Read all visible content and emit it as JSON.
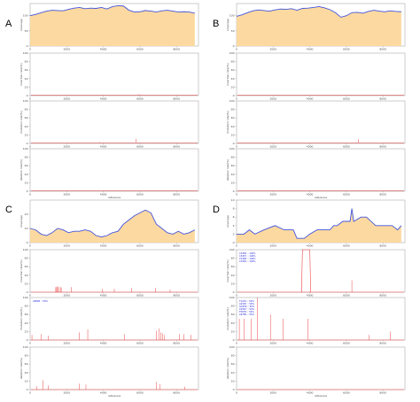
{
  "colors": {
    "coverage_fill": "#fcd9a0",
    "coverage_line": "#4455dd",
    "signal_line": "#ee4444",
    "axis": "#999999",
    "annotation_text": "#2222dd"
  },
  "chart_data": [
    {
      "id": "A",
      "panel_label": "A",
      "type": "area",
      "xlabel": "reference",
      "xlim": [
        0,
        9200
      ],
      "xticks": [
        "0",
        "2000",
        "4000",
        "6000",
        "8000"
      ],
      "rows": [
        {
          "kind": "coverage",
          "ylabel": "coverage",
          "ylim": [
            0,
            140
          ],
          "yticks": [
            "0",
            "50",
            "100"
          ],
          "points": [
            [
              0,
              100
            ],
            [
              300,
              104
            ],
            [
              600,
              110
            ],
            [
              900,
              115
            ],
            [
              1200,
              118
            ],
            [
              1500,
              117
            ],
            [
              1800,
              116
            ],
            [
              2100,
              121
            ],
            [
              2400,
              125
            ],
            [
              2700,
              127
            ],
            [
              3000,
              123
            ],
            [
              3300,
              125
            ],
            [
              3600,
              124
            ],
            [
              3900,
              127
            ],
            [
              4200,
              122
            ],
            [
              4500,
              130
            ],
            [
              4800,
              133
            ],
            [
              5100,
              132
            ],
            [
              5400,
              118
            ],
            [
              5700,
              112
            ],
            [
              6000,
              113
            ],
            [
              6300,
              117
            ],
            [
              6600,
              115
            ],
            [
              6900,
              112
            ],
            [
              7200,
              116
            ],
            [
              7500,
              118
            ],
            [
              7800,
              115
            ],
            [
              8100,
              112
            ],
            [
              8400,
              113
            ],
            [
              8700,
              112
            ],
            [
              9000,
              108
            ]
          ]
        },
        {
          "kind": "spikes",
          "ylabel": "insertion rate(%)",
          "ylim": [
            0,
            100
          ],
          "yticks": [
            "0",
            "20",
            "40",
            "60",
            "80",
            "100"
          ],
          "baseline": 1.5,
          "spikes": [
            [
              5950,
              4
            ],
            [
              7400,
              2
            ]
          ]
        },
        {
          "kind": "spikes",
          "ylabel": "mutation rate(%)",
          "ylim": [
            0,
            100
          ],
          "yticks": [
            "0",
            "20",
            "40",
            "60",
            "80",
            "100"
          ],
          "baseline": 1.5,
          "spikes": [
            [
              3800,
              3
            ],
            [
              5500,
              2
            ],
            [
              5800,
              11
            ],
            [
              6900,
              2
            ]
          ]
        },
        {
          "kind": "spikes",
          "ylabel": "deletion rate(%)",
          "ylim": [
            0,
            100
          ],
          "yticks": [
            "0",
            "20",
            "40",
            "60",
            "80",
            "100"
          ],
          "baseline": 1.5,
          "spikes": []
        }
      ]
    },
    {
      "id": "B",
      "panel_label": "B",
      "type": "area",
      "xlabel": "reference",
      "xlim": [
        0,
        9200
      ],
      "xticks": [
        "0",
        "2000",
        "4000",
        "6000",
        "8000"
      ],
      "rows": [
        {
          "kind": "coverage",
          "ylabel": "coverage",
          "ylim": [
            0,
            140
          ],
          "yticks": [
            "0",
            "50",
            "100"
          ],
          "points": [
            [
              0,
              98
            ],
            [
              300,
              103
            ],
            [
              600,
              110
            ],
            [
              900,
              116
            ],
            [
              1200,
              119
            ],
            [
              1500,
              117
            ],
            [
              1800,
              115
            ],
            [
              2100,
              119
            ],
            [
              2400,
              122
            ],
            [
              2700,
              121
            ],
            [
              3000,
              123
            ],
            [
              3300,
              118
            ],
            [
              3600,
              124
            ],
            [
              3900,
              125
            ],
            [
              4200,
              127
            ],
            [
              4500,
              130
            ],
            [
              4800,
              126
            ],
            [
              5100,
              120
            ],
            [
              5400,
              110
            ],
            [
              5700,
              95
            ],
            [
              6000,
              100
            ],
            [
              6300,
              110
            ],
            [
              6600,
              111
            ],
            [
              6900,
              108
            ],
            [
              7200,
              114
            ],
            [
              7500,
              118
            ],
            [
              7800,
              115
            ],
            [
              8100,
              113
            ],
            [
              8400,
              116
            ],
            [
              8700,
              114
            ],
            [
              9000,
              113
            ]
          ]
        },
        {
          "kind": "spikes",
          "ylabel": "insertion rate(%)",
          "ylim": [
            0,
            100
          ],
          "yticks": [
            "0",
            "20",
            "40",
            "60",
            "80",
            "100"
          ],
          "baseline": 1.5,
          "spikes": [
            [
              2300,
              2
            ],
            [
              6500,
              2
            ]
          ]
        },
        {
          "kind": "spikes",
          "ylabel": "mutation rate(%)",
          "ylim": [
            0,
            100
          ],
          "yticks": [
            "0",
            "20",
            "40",
            "60",
            "80",
            "100"
          ],
          "baseline": 1.5,
          "spikes": [
            [
              6650,
              10
            ]
          ]
        },
        {
          "kind": "spikes",
          "ylabel": "deletion rate(%)",
          "ylim": [
            0,
            100
          ],
          "yticks": [
            "0",
            "20",
            "40",
            "60",
            "80",
            "100"
          ],
          "baseline": 1.5,
          "spikes": []
        }
      ]
    },
    {
      "id": "C",
      "panel_label": "C",
      "type": "area",
      "xlabel": "reference",
      "xlim": [
        0,
        9200
      ],
      "xticks": [
        "0",
        "2000",
        "4000",
        "6000",
        "8000"
      ],
      "rows": [
        {
          "kind": "coverage",
          "ylabel": "coverage",
          "ylim": [
            0,
            30
          ],
          "yticks": [
            "0",
            "10",
            "20"
          ],
          "points": [
            [
              0,
              10
            ],
            [
              300,
              9
            ],
            [
              600,
              6
            ],
            [
              900,
              5
            ],
            [
              1200,
              7
            ],
            [
              1500,
              10
            ],
            [
              1800,
              9
            ],
            [
              2100,
              7
            ],
            [
              2400,
              8
            ],
            [
              2700,
              8
            ],
            [
              3000,
              9
            ],
            [
              3300,
              8
            ],
            [
              3600,
              5
            ],
            [
              3900,
              4
            ],
            [
              4200,
              5
            ],
            [
              4500,
              7
            ],
            [
              4800,
              8
            ],
            [
              5100,
              13
            ],
            [
              5400,
              16
            ],
            [
              5700,
              19
            ],
            [
              6000,
              21
            ],
            [
              6300,
              23
            ],
            [
              6600,
              21
            ],
            [
              6900,
              13
            ],
            [
              7200,
              10
            ],
            [
              7500,
              7
            ],
            [
              7800,
              6
            ],
            [
              8100,
              8
            ],
            [
              8400,
              6
            ],
            [
              8700,
              7
            ],
            [
              9000,
              9
            ]
          ]
        },
        {
          "kind": "spikes",
          "ylabel": "insertion rate(%)",
          "ylim": [
            0,
            100
          ],
          "yticks": [
            "0",
            "20",
            "40",
            "60",
            "80",
            "100"
          ],
          "baseline": 0,
          "spikes": [
            [
              1400,
              12
            ],
            [
              1450,
              12
            ],
            [
              1500,
              14
            ],
            [
              1550,
              12
            ],
            [
              1650,
              12
            ],
            [
              1700,
              11
            ],
            [
              2250,
              12
            ],
            [
              3950,
              8
            ],
            [
              4600,
              8
            ],
            [
              5550,
              10
            ],
            [
              6850,
              10
            ],
            [
              7650,
              6
            ]
          ]
        },
        {
          "kind": "spikes",
          "ylabel": "mutation rate(%)",
          "ylim": [
            0,
            100
          ],
          "yticks": [
            "0",
            "20",
            "40",
            "60",
            "80",
            "100"
          ],
          "baseline": 0,
          "annotations": [
            "A9898 :: 50%"
          ],
          "spikes": [
            [
              100,
              12
            ],
            [
              600,
              14
            ],
            [
              1000,
              10
            ],
            [
              2700,
              18
            ],
            [
              3150,
              25
            ],
            [
              5150,
              14
            ],
            [
              6900,
              22
            ],
            [
              7050,
              27
            ],
            [
              7150,
              18
            ],
            [
              7250,
              16
            ],
            [
              7350,
              12
            ],
            [
              8150,
              14
            ],
            [
              8400,
              14
            ],
            [
              8800,
              12
            ]
          ]
        },
        {
          "kind": "spikes",
          "ylabel": "deletion rate(%)",
          "ylim": [
            0,
            100
          ],
          "yticks": [
            "0",
            "20",
            "40",
            "60",
            "80",
            "100"
          ],
          "baseline": 0,
          "spikes": [
            [
              350,
              8
            ],
            [
              700,
              22
            ],
            [
              1000,
              10
            ],
            [
              2700,
              14
            ],
            [
              3050,
              12
            ],
            [
              6900,
              18
            ],
            [
              7100,
              13
            ],
            [
              8450,
              7
            ]
          ]
        }
      ]
    },
    {
      "id": "D",
      "panel_label": "D",
      "type": "area",
      "xlabel": "reference",
      "xlim": [
        0,
        9200
      ],
      "xticks": [
        "0",
        "2000",
        "4000",
        "6000",
        "8000"
      ],
      "rows": [
        {
          "kind": "coverage",
          "ylabel": "coverage",
          "ylim": [
            0,
            10
          ],
          "yticks": [
            "0",
            "2",
            "4",
            "6",
            "8",
            "10"
          ],
          "points": [
            [
              0,
              2
            ],
            [
              400,
              2
            ],
            [
              700,
              3
            ],
            [
              1000,
              2
            ],
            [
              1500,
              3
            ],
            [
              2100,
              4
            ],
            [
              2600,
              3
            ],
            [
              3100,
              3
            ],
            [
              3300,
              1
            ],
            [
              3700,
              1
            ],
            [
              4000,
              2
            ],
            [
              4400,
              3
            ],
            [
              5100,
              3
            ],
            [
              5300,
              4
            ],
            [
              5500,
              4
            ],
            [
              5800,
              5
            ],
            [
              6200,
              5
            ],
            [
              6300,
              8
            ],
            [
              6400,
              5
            ],
            [
              6800,
              6
            ],
            [
              7100,
              6
            ],
            [
              7600,
              4
            ],
            [
              7900,
              4
            ],
            [
              8500,
              4
            ],
            [
              8800,
              3
            ],
            [
              9000,
              4
            ]
          ]
        },
        {
          "kind": "spikes",
          "ylabel": "insertion rate(%)",
          "ylim": [
            0,
            100
          ],
          "yticks": [
            "0",
            "20",
            "40",
            "60",
            "80",
            "100"
          ],
          "baseline": 0,
          "annotations": [
            "C3456 :: 100%",
            "C3457 :: 100%",
            "C3458 :: 100%",
            "C3459 :: 100%"
          ],
          "spikes": [
            [
              6300,
              28
            ]
          ],
          "blocks": [
            [
              3550,
              4050,
              100
            ]
          ]
        },
        {
          "kind": "spikes",
          "ylabel": "mutation rate(%)",
          "ylim": [
            0,
            100
          ],
          "yticks": [
            "0",
            "20",
            "40",
            "60",
            "80",
            "100"
          ],
          "baseline": 0,
          "annotations": [
            "T1234 :: 50%",
            "A2345 :: 50%",
            "G3456 :: 50%",
            "C4567 :: 50%",
            "T5678 :: 50%",
            "A6789 :: 50%"
          ],
          "spikes": [
            [
              150,
              50
            ],
            [
              400,
              50
            ],
            [
              800,
              50
            ],
            [
              1150,
              100
            ],
            [
              1850,
              60
            ],
            [
              2550,
              50
            ],
            [
              3900,
              50
            ],
            [
              7250,
              12
            ],
            [
              8400,
              20
            ]
          ]
        },
        {
          "kind": "spikes",
          "ylabel": "deletion rate(%)",
          "ylim": [
            0,
            100
          ],
          "yticks": [
            "0",
            "20",
            "40",
            "60",
            "80",
            "100"
          ],
          "baseline": 0,
          "spikes": []
        }
      ]
    }
  ]
}
